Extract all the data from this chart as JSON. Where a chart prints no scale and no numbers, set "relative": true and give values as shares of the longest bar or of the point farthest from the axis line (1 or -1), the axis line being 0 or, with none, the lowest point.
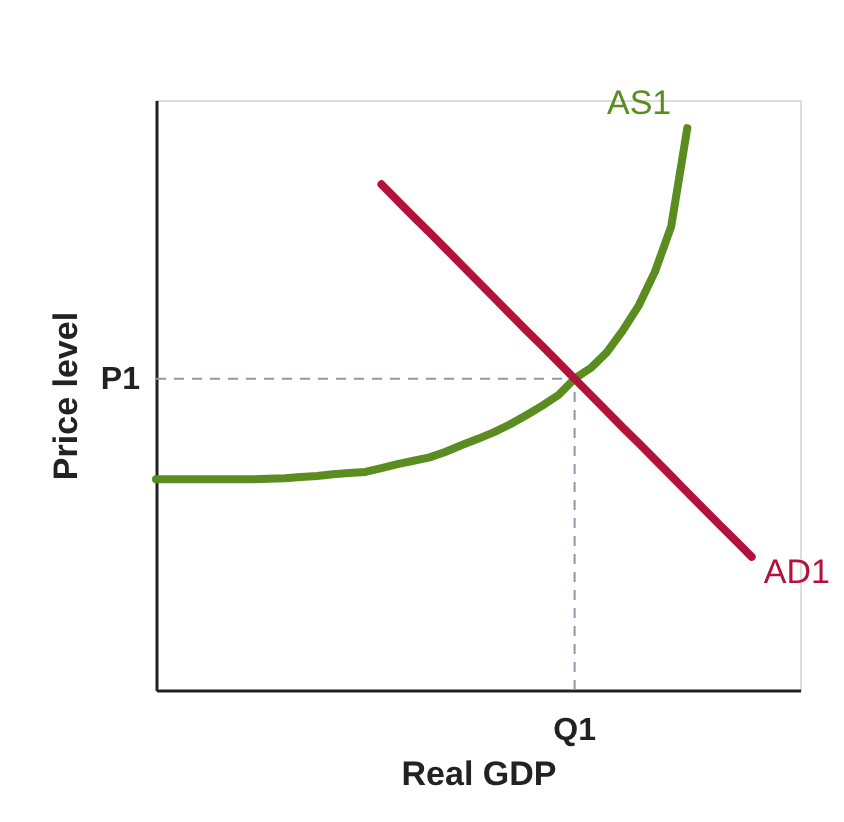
{
  "chart_data": {
    "type": "line",
    "relative": true,
    "xlabel": "Real GDP",
    "ylabel": "Price level",
    "grid": false,
    "legend": false,
    "marker": "none",
    "line_style": "solid",
    "categories": [
      null,
      null,
      null,
      null,
      null,
      null,
      null,
      null,
      null,
      null,
      null,
      null,
      null,
      null,
      null,
      null,
      null,
      null,
      null,
      null,
      null,
      null,
      null,
      null,
      null,
      null,
      null,
      null,
      null,
      null,
      null,
      null,
      null,
      null,
      null,
      null,
      null,
      null,
      null,
      null,
      null
    ],
    "series": [
      {
        "name": "AS1",
        "color": "#5b8c1f",
        "values": [
          0.375,
          0.375,
          0.375,
          0.375,
          0.375,
          0.375,
          0.375,
          0.376,
          0.377,
          0.379,
          0.381,
          0.384,
          0.386,
          0.388,
          0.395,
          0.402,
          0.408,
          0.414,
          0.424,
          0.436,
          0.447,
          0.459,
          0.473,
          0.489,
          0.506,
          0.525,
          0.554,
          0.573,
          0.601,
          0.64,
          0.685,
          0.745,
          0.825,
          1.0,
          null,
          null,
          null,
          null,
          null,
          null,
          null
        ]
      },
      {
        "name": "AD1",
        "color": "#b3123a",
        "values": [
          null,
          null,
          null,
          null,
          null,
          null,
          null,
          null,
          null,
          null,
          null,
          null,
          null,
          null,
          0.9,
          0.871,
          0.842,
          0.814,
          0.785,
          0.756,
          0.727,
          0.698,
          0.669,
          0.64,
          0.612,
          0.583,
          0.554,
          0.525,
          0.496,
          0.467,
          0.439,
          0.41,
          0.381,
          0.352,
          0.323,
          0.294,
          0.266,
          0.237,
          null,
          null,
          null
        ]
      }
    ],
    "ref_lines": [
      {
        "axis": "y",
        "value": 0.554,
        "label": "P1",
        "color": "#8a9aaa",
        "line_style": "dashed"
      }
    ],
    "annotations": [
      "Q1"
    ]
  }
}
